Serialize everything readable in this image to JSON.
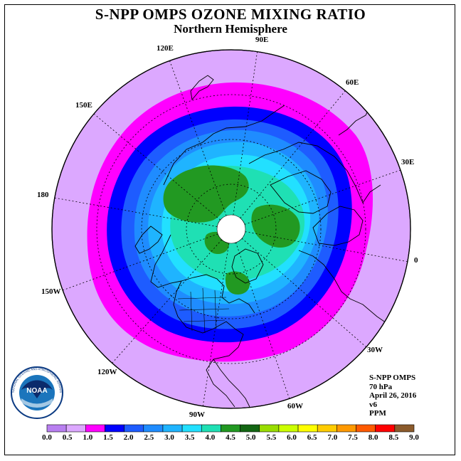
{
  "title": "S-NPP OMPS OZONE MIXING RATIO",
  "subtitle": "Northern Hemisphere",
  "longitude_labels": {
    "e90": "90E",
    "e60": "60E",
    "e30": "30E",
    "e0": "0",
    "w30": "30W",
    "w60": "60W",
    "w90": "90W",
    "w120": "120W",
    "w150": "150W",
    "e180": "180",
    "e150": "150E",
    "e120": "120E"
  },
  "info": {
    "instrument": "S-NPP OMPS",
    "level": "70 hPa",
    "date": "April 26, 2016",
    "version": "v6",
    "units": "PPM"
  },
  "logo": {
    "name": "NOAA",
    "ring_text": "NATIONAL OCEANIC AND ATMOSPHERIC ADMINISTRATION · U.S. DEPARTMENT OF COMMERCE"
  },
  "colorbar": {
    "ticks": [
      "0.0",
      "0.5",
      "1.0",
      "1.5",
      "2.0",
      "2.5",
      "3.0",
      "3.5",
      "4.0",
      "4.5",
      "5.0",
      "5.5",
      "6.0",
      "6.5",
      "7.0",
      "7.5",
      "8.0",
      "8.5",
      "9.0"
    ],
    "colors": [
      "#b87ff0",
      "#dca8ff",
      "#ff00ff",
      "#0000ff",
      "#1e5cff",
      "#1f8cff",
      "#1fb4ff",
      "#22e0ff",
      "#1fe0b4",
      "#229922",
      "#136613",
      "#99dd00",
      "#ccff00",
      "#ffff00",
      "#ffcc00",
      "#ff9900",
      "#ff5a00",
      "#ff0000",
      "#8b5a2b"
    ]
  }
}
